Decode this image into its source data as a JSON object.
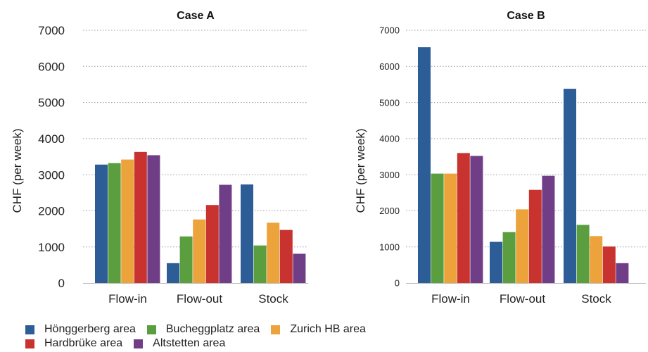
{
  "chart_data": [
    {
      "type": "bar",
      "title": "Case A",
      "ylabel": "CHF (per week)",
      "xlabel": "",
      "categories": [
        "Flow-in",
        "Flow-out",
        "Stock"
      ],
      "ylim": [
        0,
        7000
      ],
      "yticks": [
        0,
        1000,
        2000,
        3000,
        4000,
        5000,
        6000,
        7000
      ],
      "grid": "horizontal dotted",
      "series": [
        {
          "name": "Hönggerberg area",
          "values": [
            3280,
            550,
            2730
          ]
        },
        {
          "name": "Bucheggplatz area",
          "values": [
            3320,
            1290,
            1040
          ]
        },
        {
          "name": "Zurich HB area",
          "values": [
            3420,
            1760,
            1670
          ]
        },
        {
          "name": "Hardbrüke area",
          "values": [
            3630,
            2160,
            1470
          ]
        },
        {
          "name": "Altstetten area",
          "values": [
            3540,
            2720,
            810
          ]
        }
      ]
    },
    {
      "type": "bar",
      "title": "Case B",
      "ylabel": "CHF (per week)",
      "xlabel": "",
      "categories": [
        "Flow-in",
        "Flow-out",
        "Stock"
      ],
      "ylim": [
        0,
        7000
      ],
      "yticks": [
        0,
        1000,
        2000,
        3000,
        4000,
        5000,
        6000,
        7000
      ],
      "grid": "horizontal dotted",
      "series": [
        {
          "name": "Hönggerberg area",
          "values": [
            6530,
            1140,
            5380
          ]
        },
        {
          "name": "Bucheggplatz area",
          "values": [
            3030,
            1410,
            1610
          ]
        },
        {
          "name": "Zurich HB area",
          "values": [
            3030,
            2040,
            1300
          ]
        },
        {
          "name": "Hardbrüke area",
          "values": [
            3600,
            2580,
            1010
          ]
        },
        {
          "name": "Altstetten area",
          "values": [
            3520,
            2970,
            550
          ]
        }
      ]
    }
  ],
  "colors": [
    "#2c5d96",
    "#5a9e3f",
    "#eda33b",
    "#c8322f",
    "#703e86"
  ],
  "legend": {
    "placement": "bottom-left",
    "rows": [
      [
        "Hönggerberg area",
        "Bucheggplatz area",
        "Zurich HB area"
      ],
      [
        "Hardbrüke area",
        "Altstetten area"
      ]
    ]
  }
}
